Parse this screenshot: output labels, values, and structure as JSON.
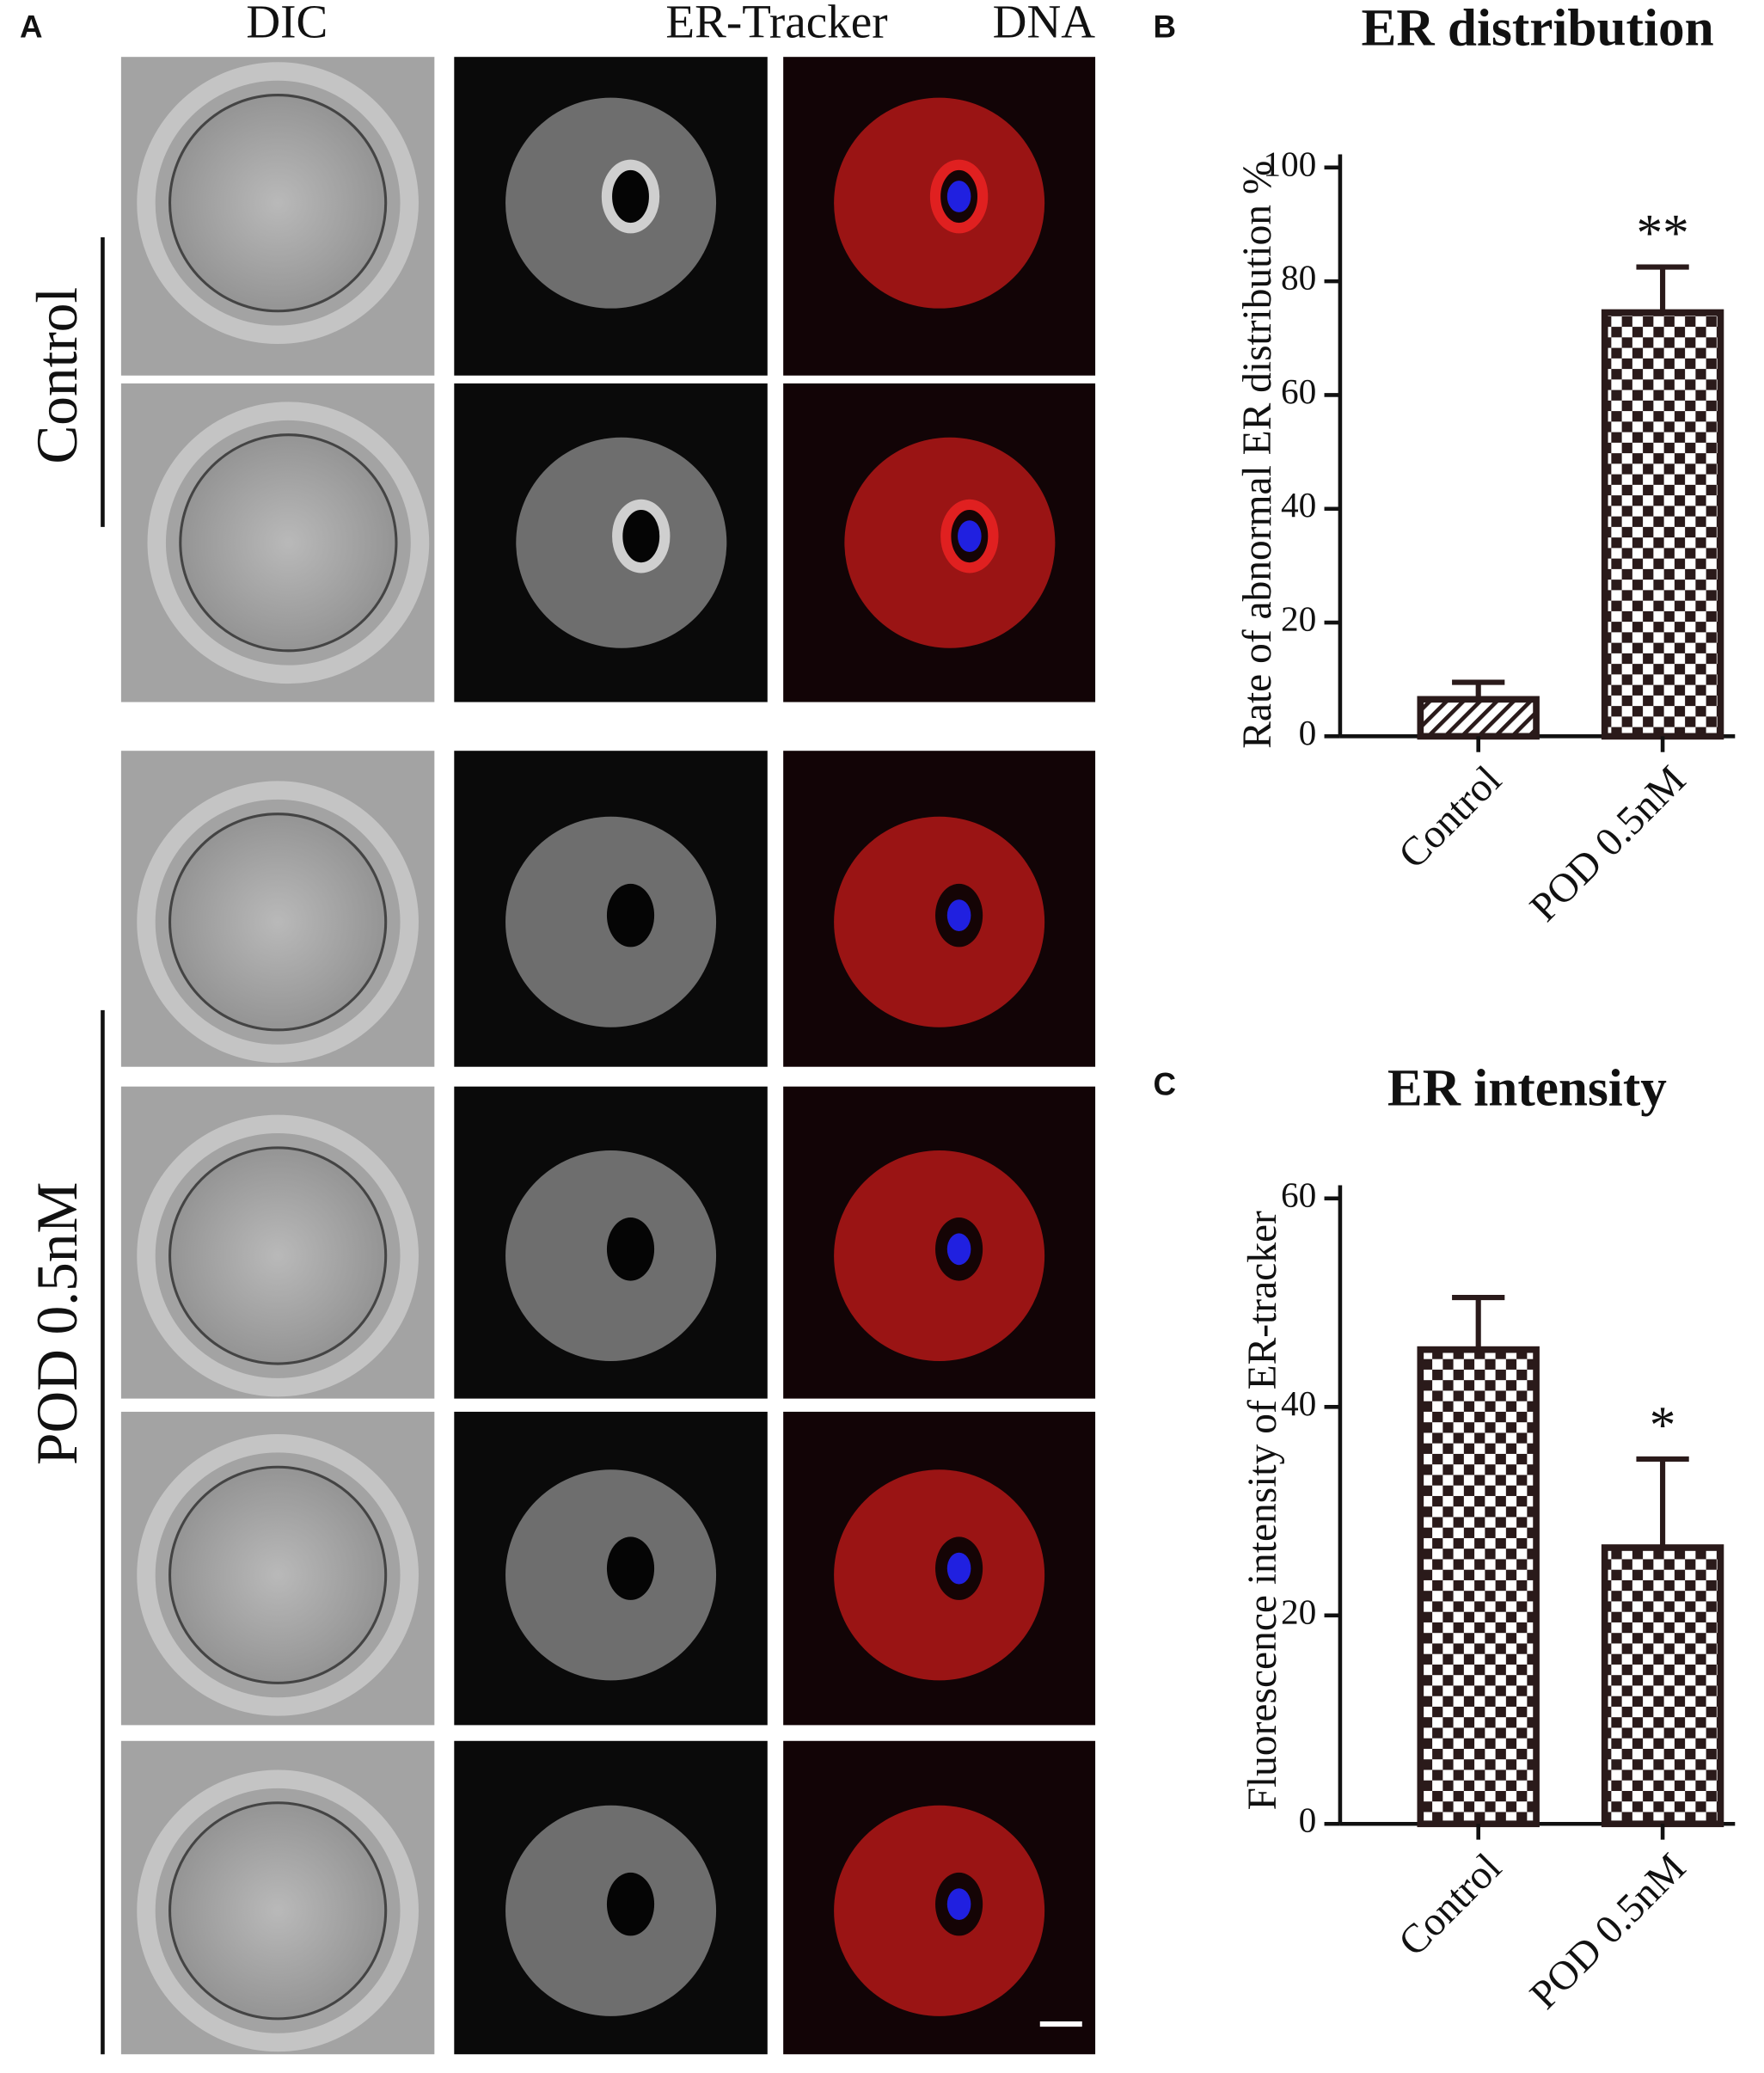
{
  "panel_labels": [
    "A",
    "B",
    "C"
  ],
  "panel_a": {
    "columns": [
      "DIC",
      "ER-Tracker",
      "DNA"
    ],
    "column_colors": [
      "#111111",
      "#e8141b",
      "#1a1adb"
    ],
    "groups": [
      "Control",
      "POD 0.5nM"
    ]
  },
  "chart_data": [
    {
      "type": "bar",
      "title": "ER distribution",
      "y_label": "Rate of abnormal ER distribution %",
      "categories": [
        "Control",
        "POD 0.5nM"
      ],
      "values": [
        6.5,
        74.5
      ],
      "errors": [
        3,
        8
      ],
      "significance": [
        null,
        "**"
      ],
      "patterns": [
        "hatch",
        "checker"
      ],
      "color": "#2a1a1a",
      "ylim": [
        0,
        100
      ],
      "yticks": [
        0,
        20,
        40,
        60,
        80,
        100
      ]
    },
    {
      "type": "bar",
      "title": "ER intensity",
      "y_label": "Fluorescence intensity of ER-tracker",
      "categories": [
        "Control",
        "POD 0.5nM"
      ],
      "values": [
        45.5,
        26.5
      ],
      "errors": [
        5,
        8.5
      ],
      "significance": [
        null,
        "*"
      ],
      "patterns": [
        "checker",
        "checker"
      ],
      "color": "#2a1a1a",
      "ylim": [
        0,
        60
      ],
      "yticks": [
        0,
        20,
        40,
        60
      ]
    }
  ]
}
